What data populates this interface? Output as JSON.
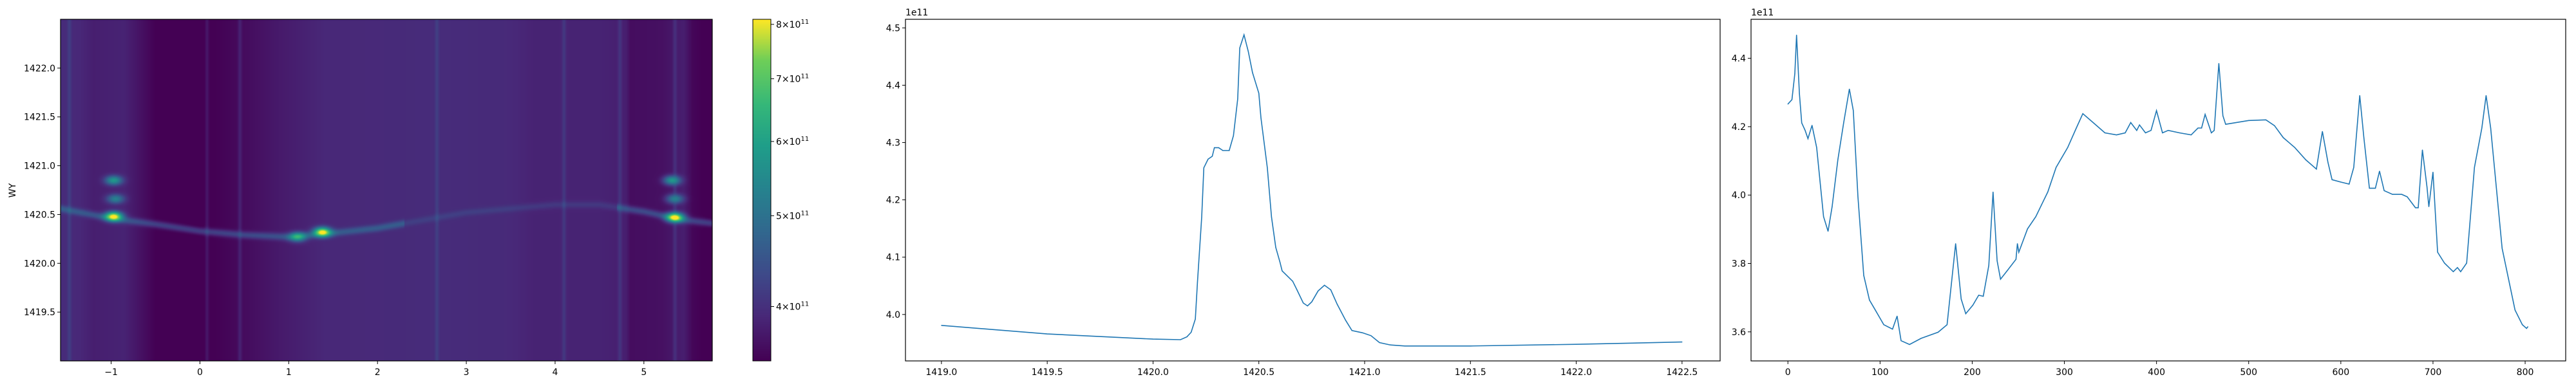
{
  "chart_data": [
    {
      "type": "heatmap",
      "colormap": "viridis",
      "ylabel": "WY",
      "xlabel": "",
      "xlim": [
        -1.57,
        5.77
      ],
      "ylim": [
        1419.0,
        1422.5
      ],
      "xticks": [
        -1,
        0,
        1,
        2,
        3,
        4,
        5
      ],
      "xtick_labels": [
        "−1",
        "0",
        "1",
        "2",
        "3",
        "4",
        "5"
      ],
      "yticks": [
        1419.5,
        1420.0,
        1420.5,
        1421.0,
        1421.5,
        1422.0
      ],
      "ytick_labels": [
        "1419.5",
        "1420.0",
        "1420.5",
        "1421.0",
        "1421.5",
        "1422.0"
      ],
      "background_profile": {
        "x": [
          -1.57,
          -1.35,
          -1.2,
          -0.85,
          -0.5,
          0.0,
          0.5,
          0.9,
          1.4,
          2.0,
          2.7,
          3.5,
          3.75,
          4.5,
          4.8,
          4.85,
          5.2,
          5.45,
          5.55,
          5.77
        ],
        "value": [
          395000000000.0,
          390000000000.0,
          380000000000.0,
          385000000000.0,
          350000000000.0,
          345000000000.0,
          360000000000.0,
          375000000000.0,
          390000000000.0,
          392000000000.0,
          395000000000.0,
          392000000000.0,
          385000000000.0,
          385000000000.0,
          380000000000.0,
          362000000000.0,
          365000000000.0,
          380000000000.0,
          355000000000.0,
          345000000000.0
        ]
      },
      "vertical_lines_x": [
        -1.47,
        0.08,
        0.45,
        2.67,
        4.1,
        4.73,
        5.35
      ],
      "ridge": {
        "x": [
          -1.57,
          -1.0,
          -0.5,
          0.0,
          0.5,
          1.0,
          1.4,
          2.0,
          3.0,
          4.0,
          4.5,
          5.0,
          5.4,
          5.77
        ],
        "y": [
          1420.56,
          1420.46,
          1420.4,
          1420.33,
          1420.29,
          1420.27,
          1420.3,
          1420.36,
          1420.52,
          1420.6,
          1420.6,
          1420.53,
          1420.45,
          1420.41
        ]
      },
      "hotspots": [
        {
          "x": -0.97,
          "y": 1420.48,
          "value": 810000000000.0
        },
        {
          "x": -0.97,
          "y": 1420.85,
          "value": 580000000000.0
        },
        {
          "x": -0.95,
          "y": 1420.66,
          "value": 530000000000.0
        },
        {
          "x": 1.38,
          "y": 1420.32,
          "value": 800000000000.0
        },
        {
          "x": 1.1,
          "y": 1420.27,
          "value": 600000000000.0
        },
        {
          "x": 5.35,
          "y": 1420.47,
          "value": 810000000000.0
        },
        {
          "x": 5.32,
          "y": 1420.85,
          "value": 580000000000.0
        },
        {
          "x": 5.35,
          "y": 1420.66,
          "value": 530000000000.0
        }
      ],
      "colorbar": {
        "scale": "log",
        "range": [
          350000000000.0,
          810000000000.0
        ],
        "ticks": [
          400000000000.0,
          500000000000.0,
          600000000000.0,
          700000000000.0,
          800000000000.0
        ],
        "tick_mantissas": [
          "4",
          "5",
          "6",
          "7",
          "8"
        ],
        "tick_times": "×10",
        "tick_exponent": "11"
      }
    },
    {
      "type": "line",
      "color": "#1f77b4",
      "offset_label": "1e11",
      "xlim": [
        1418.83,
        1422.68
      ],
      "ylim": [
        3.919,
        4.515
      ],
      "xticks": [
        1419.0,
        1419.5,
        1420.0,
        1420.5,
        1421.0,
        1421.5,
        1422.0,
        1422.5
      ],
      "xtick_labels": [
        "1419.0",
        "1419.5",
        "1420.0",
        "1420.5",
        "1421.0",
        "1421.5",
        "1422.0",
        "1422.5"
      ],
      "yticks": [
        4.0,
        4.1,
        4.2,
        4.3,
        4.4,
        4.5
      ],
      "ytick_labels": [
        "4.0",
        "4.1",
        "4.2",
        "4.3",
        "4.4",
        "4.5"
      ],
      "x": [
        1419.0,
        1419.5,
        1420.0,
        1420.13,
        1420.16,
        1420.18,
        1420.2,
        1420.21,
        1420.23,
        1420.24,
        1420.26,
        1420.28,
        1420.29,
        1420.31,
        1420.33,
        1420.36,
        1420.38,
        1420.4,
        1420.41,
        1420.43,
        1420.45,
        1420.47,
        1420.5,
        1420.51,
        1420.54,
        1420.56,
        1420.58,
        1420.6,
        1420.61,
        1420.66,
        1420.68,
        1420.71,
        1420.73,
        1420.75,
        1420.78,
        1420.81,
        1420.84,
        1420.87,
        1420.91,
        1420.94,
        1420.99,
        1421.03,
        1421.07,
        1421.12,
        1421.19,
        1421.5,
        1422.0,
        1422.5
      ],
      "y": [
        3.981,
        3.966,
        3.957,
        3.956,
        3.961,
        3.969,
        3.992,
        4.056,
        4.17,
        4.256,
        4.271,
        4.276,
        4.291,
        4.291,
        4.286,
        4.286,
        4.312,
        4.376,
        4.465,
        4.488,
        4.459,
        4.422,
        4.386,
        4.343,
        4.256,
        4.17,
        4.117,
        4.091,
        4.076,
        4.058,
        4.043,
        4.02,
        4.015,
        4.022,
        4.041,
        4.051,
        4.043,
        4.018,
        3.99,
        3.972,
        3.968,
        3.963,
        3.951,
        3.947,
        3.945,
        3.945,
        3.948,
        3.952
      ]
    },
    {
      "type": "line",
      "color": "#1f77b4",
      "offset_label": "1e11",
      "xlim": [
        -40,
        844
      ],
      "ylim": [
        3.515,
        4.514
      ],
      "xticks": [
        0,
        100,
        200,
        300,
        400,
        500,
        600,
        700,
        800
      ],
      "xtick_labels": [
        "0",
        "100",
        "200",
        "300",
        "400",
        "500",
        "600",
        "700",
        "800"
      ],
      "yticks": [
        3.6,
        3.8,
        4.0,
        4.2,
        4.4
      ],
      "ytick_labels": [
        "3.6",
        "3.8",
        "4.0",
        "4.2",
        "4.4"
      ],
      "x": [
        0,
        4.4,
        7.5,
        9.4,
        12.5,
        15,
        18.7,
        21.8,
        26.2,
        31.2,
        35.5,
        38.7,
        43.6,
        48,
        54.2,
        60.5,
        66.7,
        71,
        76,
        82.3,
        88.5,
        94.8,
        104,
        113.5,
        118.5,
        122.8,
        132,
        144.6,
        163,
        172.7,
        182,
        188,
        193,
        200.7,
        207,
        212,
        218,
        222.6,
        227,
        230.7,
        238,
        247.5,
        249,
        250.6,
        260,
        269,
        282,
        291,
        303.6,
        313,
        320,
        331.7,
        344,
        356.6,
        366,
        372,
        378.5,
        381.5,
        388,
        394,
        400,
        406.5,
        412.7,
        425,
        437.6,
        445,
        448.9,
        452.7,
        459.5,
        462.6,
        467.6,
        472,
        475,
        500,
        518.7,
        528,
        537.5,
        550,
        562,
        573.5,
        580,
        586,
        590.5,
        600,
        609,
        614,
        620.5,
        625,
        631,
        637.5,
        642,
        647,
        656,
        666,
        672,
        681,
        684,
        688.5,
        693.5,
        695.5,
        700,
        705,
        712.5,
        722,
        726.5,
        730,
        736.5,
        745,
        753,
        757.6,
        762.6,
        775,
        789,
        797,
        801.5,
        803
      ],
      "y": [
        4.266,
        4.279,
        4.355,
        4.468,
        4.297,
        4.211,
        4.189,
        4.165,
        4.204,
        4.139,
        4.024,
        3.937,
        3.894,
        3.966,
        4.103,
        4.211,
        4.31,
        4.247,
        3.995,
        3.765,
        3.693,
        3.664,
        3.621,
        3.608,
        3.646,
        3.574,
        3.563,
        3.581,
        3.599,
        3.621,
        3.858,
        3.696,
        3.653,
        3.678,
        3.707,
        3.704,
        3.794,
        4.009,
        3.808,
        3.754,
        3.779,
        3.812,
        3.858,
        3.833,
        3.901,
        3.937,
        4.009,
        4.081,
        4.139,
        4.196,
        4.238,
        4.211,
        4.182,
        4.176,
        4.182,
        4.212,
        4.189,
        4.205,
        4.182,
        4.189,
        4.247,
        4.182,
        4.189,
        4.182,
        4.176,
        4.196,
        4.196,
        4.236,
        4.182,
        4.189,
        4.385,
        4.232,
        4.207,
        4.218,
        4.22,
        4.203,
        4.168,
        4.139,
        4.103,
        4.076,
        4.186,
        4.096,
        4.045,
        4.038,
        4.032,
        4.081,
        4.291,
        4.168,
        4.02,
        4.02,
        4.07,
        4.013,
        4.002,
        4.002,
        3.995,
        3.963,
        3.963,
        4.132,
        4.024,
        3.966,
        4.067,
        3.833,
        3.801,
        3.776,
        3.788,
        3.776,
        3.801,
        4.081,
        4.196,
        4.291,
        4.196,
        3.844,
        3.664,
        3.621,
        3.61,
        3.615
      ]
    }
  ]
}
